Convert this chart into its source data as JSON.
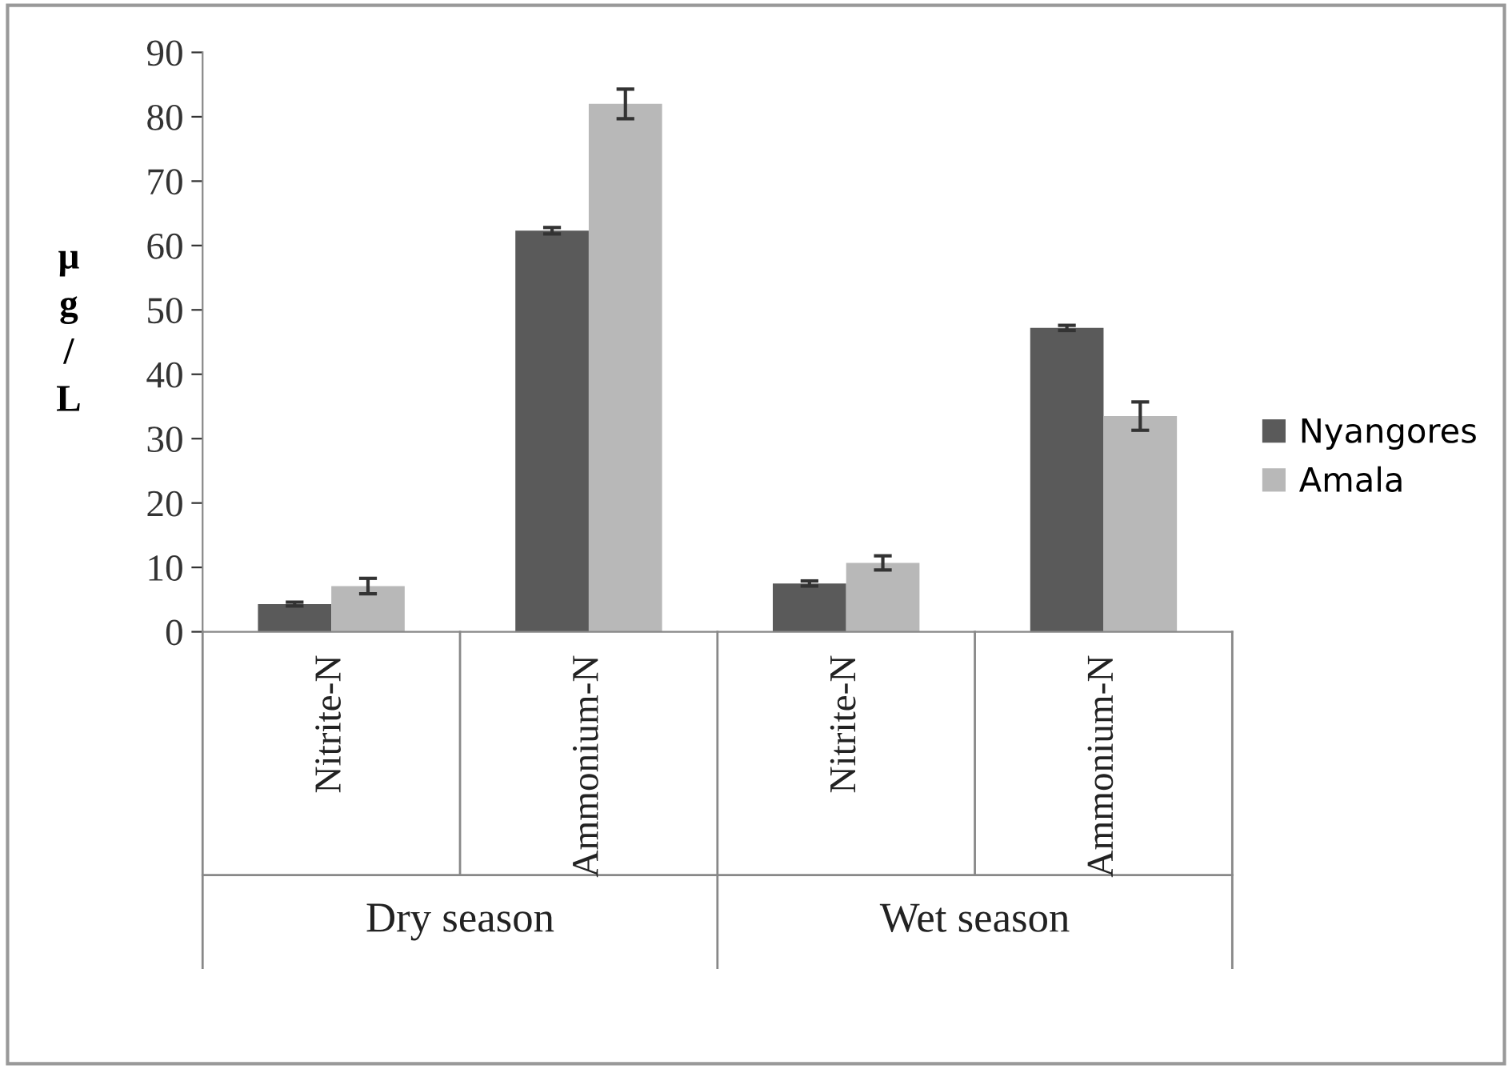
{
  "chart_data": {
    "type": "bar",
    "ylabel": "μg/L",
    "categories": [
      "Nitrite-N",
      "Ammonium-N",
      "Nitrite-N",
      "Ammonium-N"
    ],
    "series": [
      {
        "name": "Nyangores",
        "color": "#5a5a5a",
        "values": [
          4.3,
          62.3,
          7.5,
          47.2
        ],
        "errors": [
          0.3,
          0.5,
          0.4,
          0.4
        ]
      },
      {
        "name": "Amala",
        "color": "#b8b8b8",
        "values": [
          7.1,
          82.0,
          10.7,
          33.5
        ],
        "errors": [
          1.2,
          2.3,
          1.1,
          2.2
        ]
      }
    ],
    "annotations": [
      "Dry season",
      "Wet season"
    ],
    "ylim": [
      0,
      90
    ],
    "yticks": [
      0,
      10,
      20,
      30,
      40,
      50,
      60,
      70,
      80,
      90
    ],
    "grid": false,
    "legend": "right"
  }
}
